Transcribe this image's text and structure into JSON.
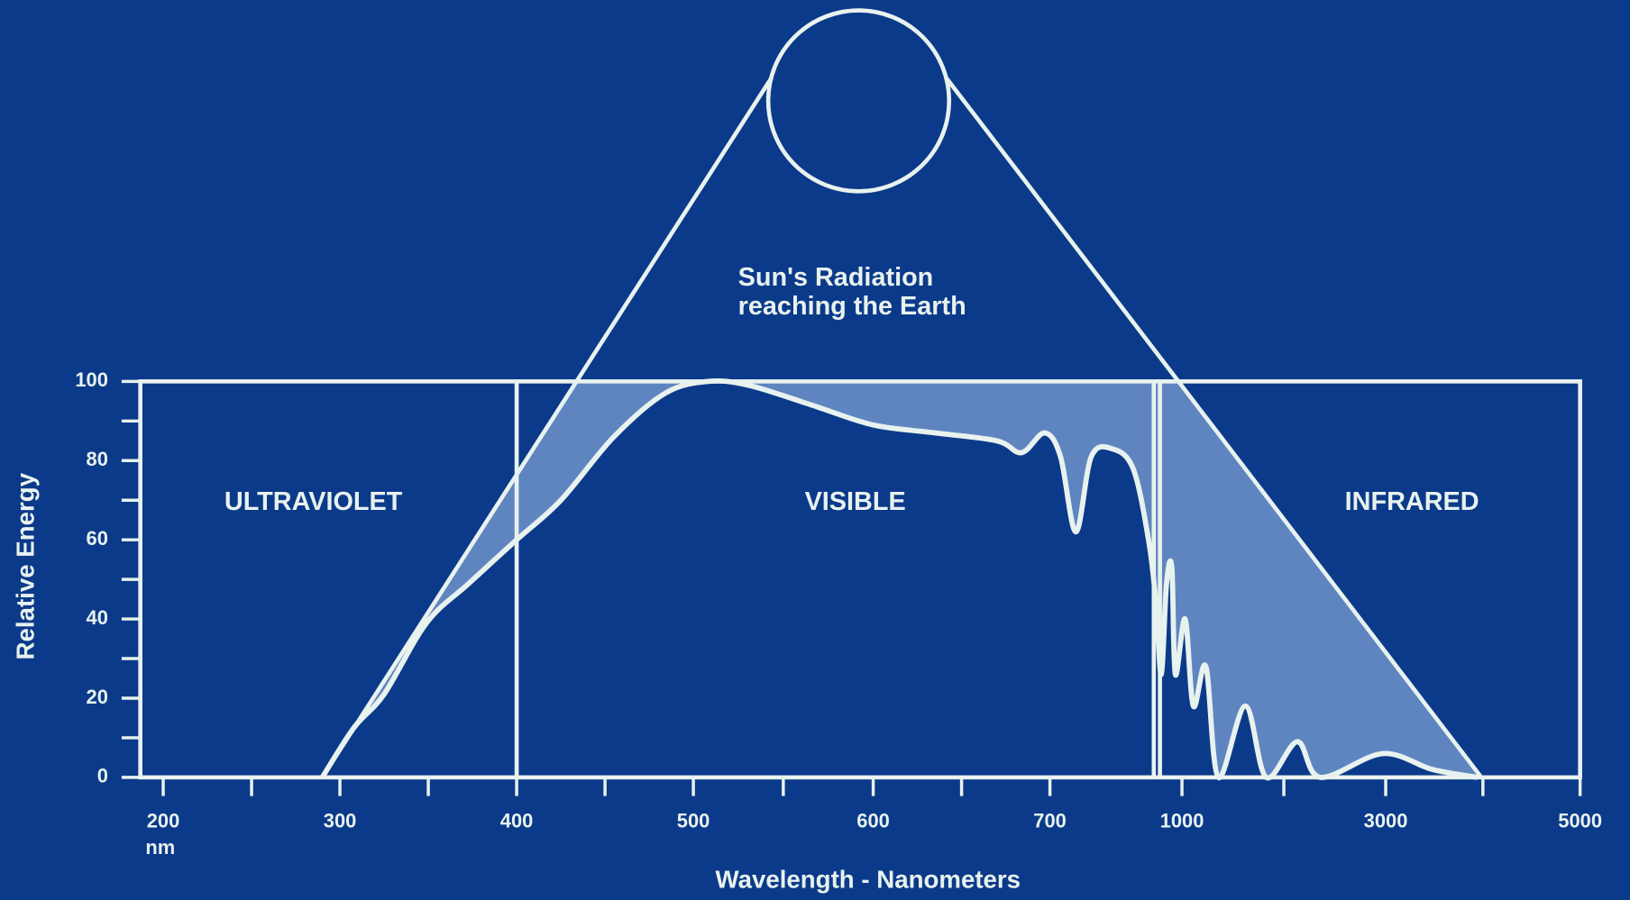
{
  "chart_data": {
    "type": "line",
    "title": "Sun's Radiation",
    "subtitle": "reaching the Earth",
    "xlabel": "Wavelength - Nanometers",
    "ylabel": "Relative Energy",
    "x_unit_label": "nm",
    "color": "#e8f2ee",
    "shade_color": "#6f93c9",
    "x": [
      290,
      308,
      325,
      349,
      373,
      400,
      425,
      455,
      484,
      508,
      531,
      566,
      600,
      635,
      670,
      684,
      697,
      724,
      759,
      794,
      841,
      889,
      924,
      941,
      953,
      965,
      977,
      985,
      1031,
      1112,
      1235,
      1357,
      1622,
      1827,
      2133,
      2357,
      2969,
      3480,
      3939
    ],
    "values": [
      0,
      12.6,
      21,
      39,
      49,
      60,
      70,
      86,
      97,
      100,
      99,
      94,
      89,
      87,
      85,
      82,
      87,
      81,
      62,
      81,
      83,
      78,
      60,
      44,
      26,
      49,
      53,
      26,
      40,
      18,
      28,
      0,
      18,
      0,
      9,
      0,
      6,
      2,
      0
    ],
    "xlim": [
      187,
      5000
    ],
    "ylim": [
      0,
      100
    ],
    "xticks": [
      200,
      300,
      400,
      500,
      600,
      700,
      1000,
      3000,
      5000
    ],
    "xminorticks": [
      250,
      350,
      450,
      550,
      650,
      2000,
      4000
    ],
    "yticks": [
      0,
      20,
      40,
      60,
      80,
      100
    ],
    "yminorticks": [
      10,
      30,
      50,
      70,
      90
    ],
    "dividers": [
      400,
      936,
      950
    ],
    "regions": [
      {
        "label": "ULTRAVIOLET",
        "center": 285
      },
      {
        "label": "VISIBLE",
        "center": 590
      },
      {
        "label": "INFRARED",
        "center": 3270
      }
    ]
  }
}
